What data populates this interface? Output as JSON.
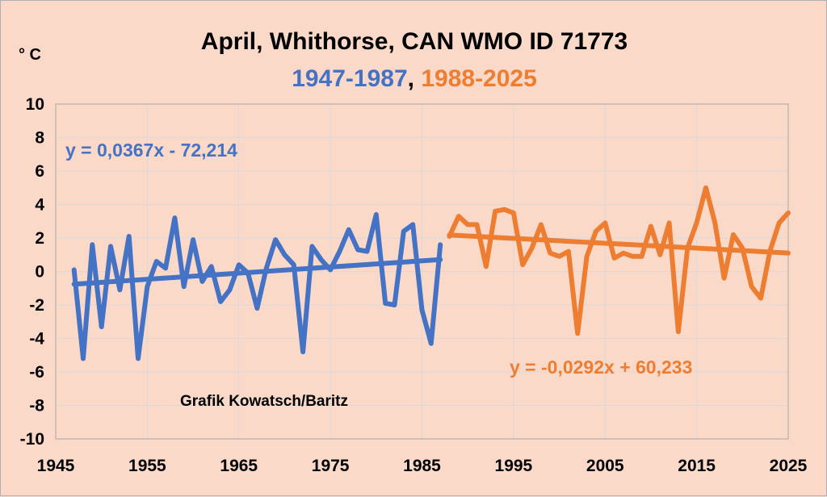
{
  "chart_data": {
    "type": "line",
    "title": "April, Whithorse, CAN WMO ID 71773",
    "subtitle_parts": [
      {
        "text": "1947-1987",
        "color": "#4472c4"
      },
      {
        "text": ", ",
        "color": "#000000"
      },
      {
        "text": "1988-2025",
        "color": "#ed7d31"
      }
    ],
    "ylabel": "° C",
    "xlim": [
      1945,
      2025
    ],
    "ylim": [
      -10,
      10
    ],
    "x_ticks": [
      "1945",
      "1955",
      "1965",
      "1975",
      "1985",
      "1995",
      "2005",
      "2015",
      "2025"
    ],
    "y_ticks": [
      "10",
      "8",
      "6",
      "4",
      "2",
      "0",
      "-2",
      "-4",
      "-6",
      "-8",
      "-10"
    ],
    "grid": true,
    "legend": "none",
    "credit": "Grafik Kowatsch/Baritz",
    "series": [
      {
        "color": "#4472c4",
        "x": [
          1947,
          1948,
          1949,
          1950,
          1951,
          1952,
          1953,
          1954,
          1955,
          1956,
          1957,
          1958,
          1959,
          1960,
          1961,
          1962,
          1963,
          1964,
          1965,
          1966,
          1967,
          1968,
          1969,
          1970,
          1971,
          1972,
          1973,
          1974,
          1975,
          1976,
          1977,
          1978,
          1979,
          1980,
          1981,
          1982,
          1983,
          1984,
          1985,
          1986,
          1987
        ],
        "values": [
          0.1,
          -5.2,
          1.6,
          -3.3,
          1.5,
          -1.1,
          2.1,
          -5.2,
          -0.9,
          0.6,
          0.2,
          3.2,
          -0.9,
          1.9,
          -0.6,
          0.3,
          -1.8,
          -1.1,
          0.4,
          -0.1,
          -2.2,
          0.2,
          1.9,
          1.0,
          0.4,
          -4.8,
          1.5,
          0.7,
          0.1,
          1.2,
          2.5,
          1.3,
          1.2,
          3.4,
          -1.9,
          -2.0,
          2.4,
          2.8,
          -2.3,
          -4.3,
          1.6
        ],
        "trend": {
          "equation": "y = 0,0367x - 72,214",
          "slope": 0.0367,
          "intercept": -72.214,
          "x_range": [
            1947,
            1987
          ]
        }
      },
      {
        "color": "#ed7d31",
        "x": [
          1988,
          1989,
          1990,
          1991,
          1992,
          1993,
          1994,
          1995,
          1996,
          1997,
          1998,
          1999,
          2000,
          2001,
          2002,
          2003,
          2004,
          2005,
          2006,
          2007,
          2008,
          2009,
          2010,
          2011,
          2012,
          2013,
          2014,
          2015,
          2016,
          2017,
          2018,
          2019,
          2020,
          2021,
          2022,
          2023,
          2024,
          2025
        ],
        "values": [
          2.1,
          3.3,
          2.8,
          2.8,
          0.3,
          3.6,
          3.7,
          3.5,
          0.4,
          1.4,
          2.8,
          1.1,
          0.9,
          1.2,
          -3.7,
          0.9,
          2.4,
          2.9,
          0.8,
          1.1,
          0.9,
          0.9,
          2.7,
          1.0,
          2.9,
          -3.6,
          1.4,
          2.9,
          5.0,
          2.9,
          -0.4,
          2.2,
          1.4,
          -0.9,
          -1.6,
          1.2,
          2.9,
          3.5
        ],
        "trend": {
          "equation": "y = -0,0292x + 60,233",
          "slope": -0.0292,
          "intercept": 60.233,
          "x_range": [
            1988,
            2025
          ]
        }
      }
    ]
  }
}
